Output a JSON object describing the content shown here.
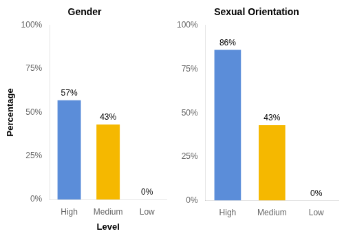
{
  "chart_data": [
    {
      "type": "bar",
      "title": "Gender",
      "categories": [
        "High",
        "Medium",
        "Low"
      ],
      "values": [
        57,
        43,
        0
      ],
      "value_labels": [
        "57%",
        "43%",
        "0%"
      ],
      "colors": [
        "#5B8DD9",
        "#F5B800",
        "#FFFFFF"
      ],
      "ylabel": "Percentage",
      "xlabel": "Level",
      "ylim": [
        0,
        100
      ],
      "yticks": [
        {
          "value": 0,
          "label": "0%"
        },
        {
          "value": 25,
          "label": "25%"
        },
        {
          "value": 50,
          "label": "50%"
        },
        {
          "value": 75,
          "label": "75%"
        },
        {
          "value": 100,
          "label": "100%"
        }
      ],
      "grid": false,
      "data_labels": true
    },
    {
      "type": "bar",
      "title": "Sexual Orientation",
      "categories": [
        "High",
        "Medium",
        "Low"
      ],
      "values": [
        86,
        43,
        0
      ],
      "value_labels": [
        "86%",
        "43%",
        "0%"
      ],
      "colors": [
        "#5B8DD9",
        "#F5B800",
        "#FFFFFF"
      ],
      "ylim": [
        0,
        100
      ],
      "yticks": [
        {
          "value": 0,
          "label": "0%"
        },
        {
          "value": 25,
          "label": "25%"
        },
        {
          "value": 50,
          "label": "50%"
        },
        {
          "value": 75,
          "label": "75%"
        },
        {
          "value": 100,
          "label": "100%"
        }
      ],
      "grid": false,
      "data_labels": true
    }
  ]
}
